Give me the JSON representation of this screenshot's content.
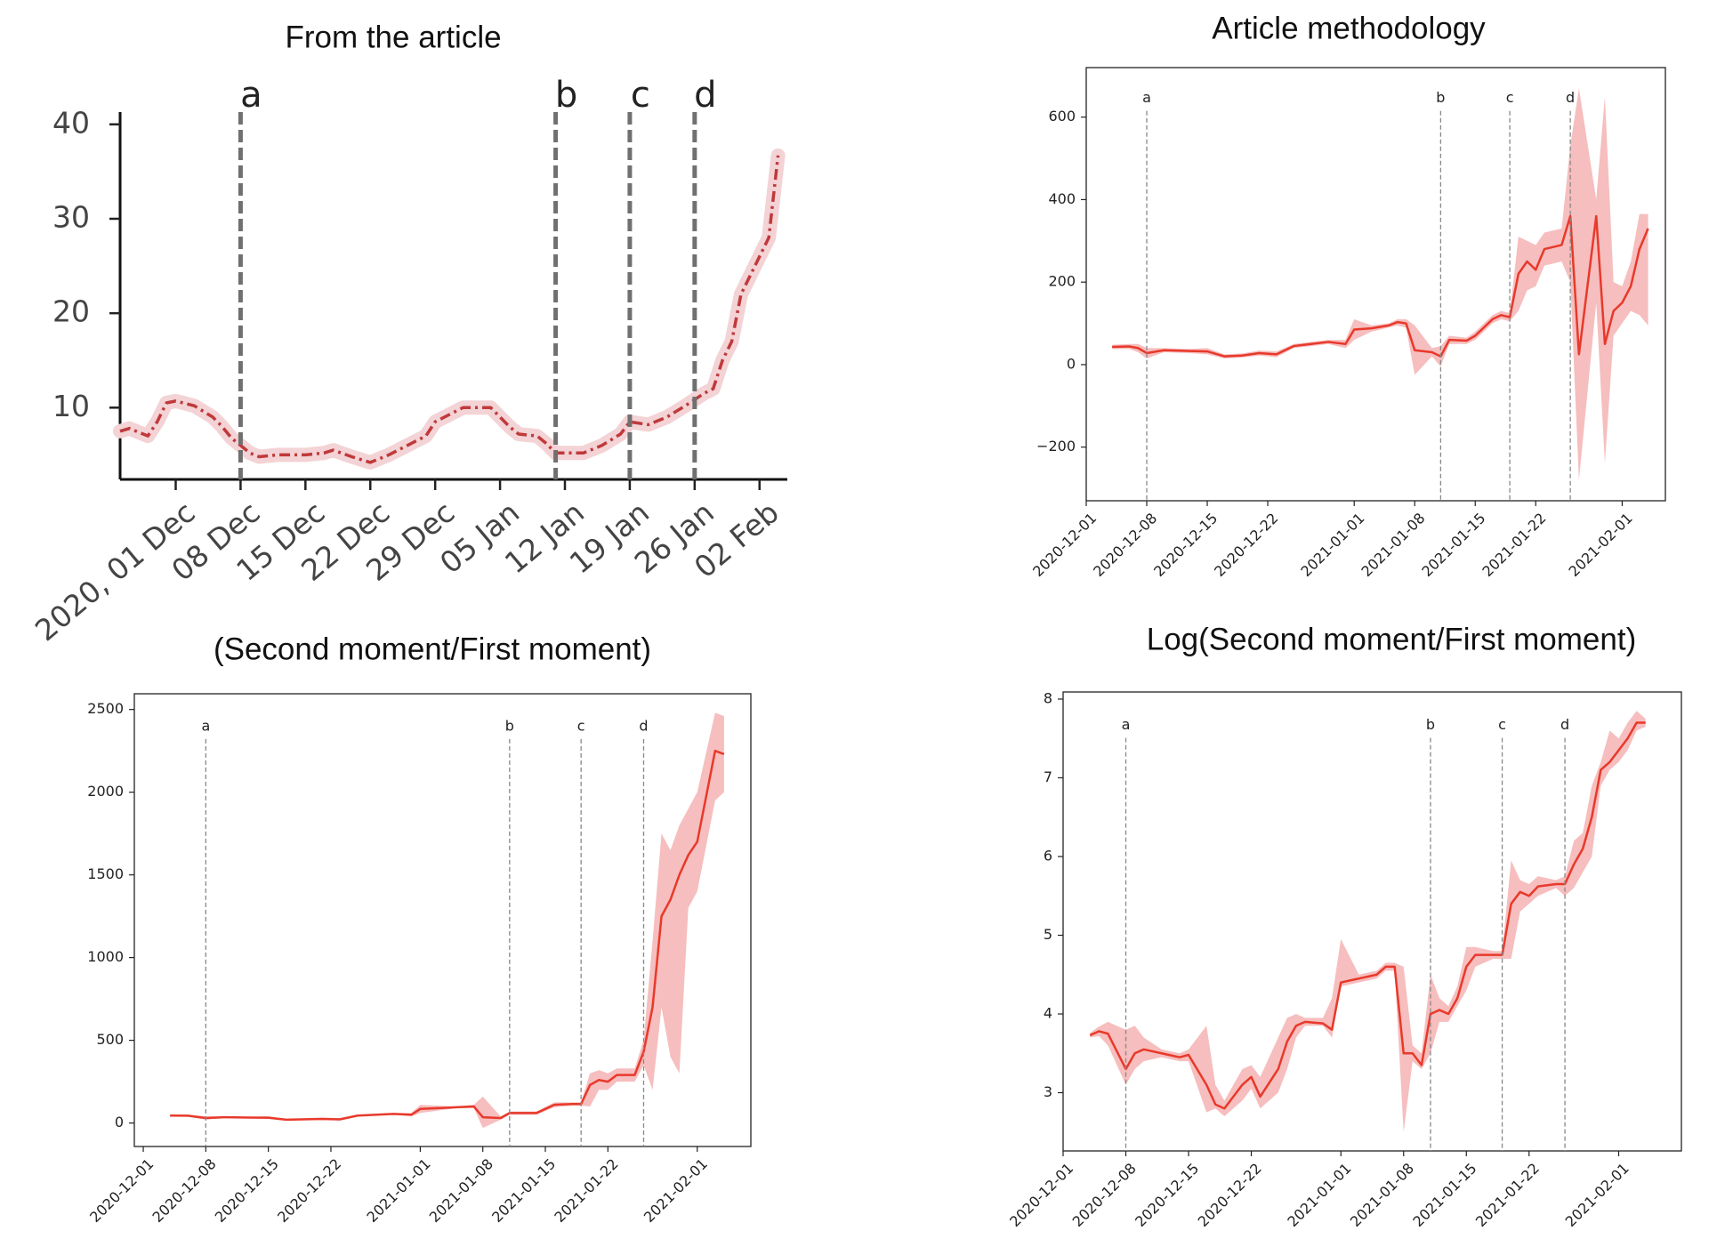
{
  "chart_data": [
    {
      "type": "line",
      "title": "From the article",
      "frame": false,
      "dash": "dashdot",
      "color": "#c0393b",
      "halo_color": "#f3d3d5",
      "x": [
        "2020-11-25",
        "2020-11-26",
        "2020-11-27",
        "2020-11-28",
        "2020-11-29",
        "2020-11-30",
        "2020-12-01",
        "2020-12-03",
        "2020-12-05",
        "2020-12-06",
        "2020-12-07",
        "2020-12-08",
        "2020-12-09",
        "2020-12-10",
        "2020-12-12",
        "2020-12-15",
        "2020-12-17",
        "2020-12-18",
        "2020-12-20",
        "2020-12-22",
        "2020-12-24",
        "2020-12-26",
        "2020-12-28",
        "2020-12-29",
        "2020-12-31",
        "2021-01-01",
        "2021-01-04",
        "2021-01-05",
        "2021-01-06",
        "2021-01-07",
        "2021-01-09",
        "2021-01-10",
        "2021-01-11",
        "2021-01-14",
        "2021-01-16",
        "2021-01-18",
        "2021-01-19",
        "2021-01-21",
        "2021-01-23",
        "2021-01-25",
        "2021-01-27",
        "2021-01-28",
        "2021-01-29",
        "2021-01-30",
        "2021-01-31",
        "2021-02-01",
        "2021-02-02",
        "2021-02-03",
        "2021-02-04"
      ],
      "values": [
        7.5,
        7.8,
        7.4,
        7,
        8.5,
        10.5,
        10.7,
        10.2,
        9,
        8,
        6.8,
        6,
        5.2,
        4.8,
        5,
        5,
        5.2,
        5.5,
        4.8,
        4.2,
        5,
        6,
        7,
        8.5,
        9.5,
        10,
        10,
        9,
        8,
        7.2,
        7,
        6.2,
        5.2,
        5.2,
        6,
        7.2,
        8.5,
        8.2,
        9,
        10.2,
        11.5,
        12,
        15,
        17,
        22,
        24,
        26,
        28,
        36.7
      ],
      "xlim": [
        "2020-11-25",
        "2021-02-05"
      ],
      "xticks": [
        {
          "value": "2020-12-01",
          "label": "2020, 01 Dec"
        },
        {
          "value": "2020-12-08",
          "label": "08 Dec"
        },
        {
          "value": "2020-12-15",
          "label": "15 Dec"
        },
        {
          "value": "2020-12-22",
          "label": "22 Dec"
        },
        {
          "value": "2020-12-29",
          "label": "29 Dec"
        },
        {
          "value": "2021-01-05",
          "label": "05 Jan"
        },
        {
          "value": "2021-01-12",
          "label": "12 Jan"
        },
        {
          "value": "2021-01-19",
          "label": "19 Jan"
        },
        {
          "value": "2021-01-26",
          "label": "26 Jan"
        },
        {
          "value": "2021-02-02",
          "label": "02 Feb"
        }
      ],
      "ylim": [
        2.4,
        41.3
      ],
      "yticks": [
        10,
        20,
        30,
        40
      ],
      "vlines": [
        {
          "x": "2020-12-08",
          "label": "a"
        },
        {
          "x": "2021-01-11",
          "label": "b"
        },
        {
          "x": "2021-01-19",
          "label": "c"
        },
        {
          "x": "2021-01-26",
          "label": "d"
        }
      ]
    },
    {
      "type": "band",
      "title": "Article methodology",
      "frame": true,
      "color": "#e8392b",
      "band_color": "#f2a3a3",
      "x": [
        "2020-12-04",
        "2020-12-06",
        "2020-12-07",
        "2020-12-08",
        "2020-12-10",
        "2020-12-13",
        "2020-12-15",
        "2020-12-17",
        "2020-12-19",
        "2020-12-21",
        "2020-12-23",
        "2020-12-25",
        "2020-12-27",
        "2020-12-29",
        "2020-12-31",
        "2021-01-01",
        "2021-01-03",
        "2021-01-05",
        "2021-01-06",
        "2021-01-07",
        "2021-01-08",
        "2021-01-10",
        "2021-01-11",
        "2021-01-12",
        "2021-01-14",
        "2021-01-15",
        "2021-01-17",
        "2021-01-18",
        "2021-01-19",
        "2021-01-20",
        "2021-01-21",
        "2021-01-22",
        "2021-01-23",
        "2021-01-25",
        "2021-01-26",
        "2021-01-27",
        "2021-01-29",
        "2021-01-30",
        "2021-01-31",
        "2021-02-01",
        "2021-02-02",
        "2021-02-03",
        "2021-02-04"
      ],
      "values": [
        43,
        44,
        40,
        28,
        35,
        33,
        32,
        20,
        22,
        28,
        25,
        45,
        50,
        55,
        50,
        85,
        88,
        95,
        103,
        100,
        35,
        30,
        20,
        60,
        58,
        70,
        110,
        120,
        115,
        220,
        250,
        230,
        280,
        290,
        360,
        25,
        360,
        50,
        130,
        150,
        190,
        280,
        330
      ],
      "lower": [
        38,
        38,
        30,
        15,
        30,
        28,
        25,
        15,
        17,
        22,
        18,
        40,
        45,
        50,
        40,
        60,
        80,
        90,
        95,
        90,
        -25,
        20,
        -5,
        50,
        50,
        60,
        100,
        110,
        105,
        130,
        180,
        190,
        240,
        250,
        200,
        -280,
        150,
        -240,
        70,
        100,
        130,
        120,
        95
      ],
      "upper": [
        48,
        50,
        50,
        40,
        40,
        38,
        40,
        25,
        27,
        34,
        32,
        50,
        55,
        60,
        60,
        110,
        95,
        100,
        110,
        110,
        95,
        40,
        45,
        70,
        65,
        80,
        120,
        130,
        125,
        310,
        300,
        290,
        320,
        330,
        530,
        670,
        400,
        650,
        200,
        190,
        250,
        365,
        365
      ],
      "xlim": [
        "2020-12-01",
        "2021-02-06"
      ],
      "xticks": [
        "2020-12-01",
        "2020-12-08",
        "2020-12-15",
        "2020-12-22",
        "2021-01-01",
        "2021-01-08",
        "2021-01-15",
        "2021-01-22",
        "2021-02-01"
      ],
      "ylim": [
        -330,
        720
      ],
      "yticks": [
        {
          "value": -200,
          "label": "−200"
        },
        0,
        200,
        400,
        600
      ],
      "vlines": [
        {
          "x": "2020-12-08",
          "label": "a"
        },
        {
          "x": "2021-01-11",
          "label": "b"
        },
        {
          "x": "2021-01-19",
          "label": "c"
        },
        {
          "x": "2021-01-26",
          "label": "d"
        }
      ]
    },
    {
      "type": "band",
      "title": "(Second moment/First moment)",
      "frame": true,
      "color": "#e8392b",
      "band_color": "#f2a3a3",
      "x": [
        "2020-12-04",
        "2020-12-06",
        "2020-12-08",
        "2020-12-10",
        "2020-12-13",
        "2020-12-15",
        "2020-12-17",
        "2020-12-21",
        "2020-12-23",
        "2020-12-25",
        "2020-12-29",
        "2020-12-31",
        "2021-01-01",
        "2021-01-05",
        "2021-01-07",
        "2021-01-08",
        "2021-01-10",
        "2021-01-11",
        "2021-01-14",
        "2021-01-16",
        "2021-01-18",
        "2021-01-19",
        "2021-01-20",
        "2021-01-21",
        "2021-01-22",
        "2021-01-23",
        "2021-01-25",
        "2021-01-26",
        "2021-01-27",
        "2021-01-28",
        "2021-01-29",
        "2021-01-30",
        "2021-01-31",
        "2021-02-01",
        "2021-02-03",
        "2021-02-04"
      ],
      "values": [
        45,
        44,
        30,
        35,
        33,
        32,
        20,
        25,
        22,
        45,
        55,
        50,
        85,
        95,
        100,
        35,
        30,
        60,
        60,
        110,
        115,
        115,
        230,
        260,
        250,
        290,
        290,
        430,
        700,
        1250,
        1350,
        1500,
        1620,
        1700,
        2250,
        2230
      ],
      "lower": [
        40,
        38,
        20,
        30,
        28,
        25,
        15,
        18,
        15,
        40,
        50,
        40,
        60,
        90,
        90,
        -30,
        20,
        50,
        50,
        95,
        105,
        105,
        100,
        200,
        200,
        250,
        250,
        350,
        200,
        700,
        400,
        300,
        1300,
        1400,
        1950,
        2000
      ],
      "upper": [
        50,
        50,
        40,
        40,
        38,
        40,
        25,
        32,
        30,
        50,
        60,
        60,
        110,
        100,
        110,
        160,
        40,
        70,
        70,
        125,
        125,
        125,
        300,
        320,
        300,
        330,
        330,
        500,
        1100,
        1750,
        1650,
        1800,
        1900,
        2000,
        2480,
        2460
      ],
      "xlim": [
        "2020-11-30",
        "2021-02-07"
      ],
      "xticks": [
        "2020-12-01",
        "2020-12-08",
        "2020-12-15",
        "2020-12-22",
        "2021-01-01",
        "2021-01-08",
        "2021-01-15",
        "2021-01-22",
        "2021-02-01"
      ],
      "ylim": [
        -142,
        2595
      ],
      "yticks": [
        0,
        500,
        1000,
        1500,
        2000,
        2500
      ],
      "vlines": [
        {
          "x": "2020-12-08",
          "label": "a"
        },
        {
          "x": "2021-01-11",
          "label": "b"
        },
        {
          "x": "2021-01-19",
          "label": "c"
        },
        {
          "x": "2021-01-26",
          "label": "d"
        }
      ]
    },
    {
      "type": "band",
      "title": "Log(Second moment/First moment)",
      "frame": true,
      "color": "#e8392b",
      "band_color": "#f2a3a3",
      "x": [
        "2020-12-04",
        "2020-12-05",
        "2020-12-06",
        "2020-12-08",
        "2020-12-09",
        "2020-12-10",
        "2020-12-12",
        "2020-12-14",
        "2020-12-15",
        "2020-12-17",
        "2020-12-18",
        "2020-12-19",
        "2020-12-21",
        "2020-12-22",
        "2020-12-23",
        "2020-12-25",
        "2020-12-26",
        "2020-12-27",
        "2020-12-28",
        "2020-12-30",
        "2020-12-31",
        "2021-01-01",
        "2021-01-03",
        "2021-01-05",
        "2021-01-06",
        "2021-01-07",
        "2021-01-08",
        "2021-01-09",
        "2021-01-10",
        "2021-01-11",
        "2021-01-12",
        "2021-01-13",
        "2021-01-14",
        "2021-01-15",
        "2021-01-16",
        "2021-01-18",
        "2021-01-19",
        "2021-01-20",
        "2021-01-21",
        "2021-01-22",
        "2021-01-23",
        "2021-01-25",
        "2021-01-26",
        "2021-01-27",
        "2021-01-28",
        "2021-01-29",
        "2021-01-30",
        "2021-01-31",
        "2021-02-01",
        "2021-02-02",
        "2021-02-03",
        "2021-02-04"
      ],
      "values": [
        3.73,
        3.78,
        3.75,
        3.3,
        3.5,
        3.55,
        3.5,
        3.45,
        3.48,
        3.1,
        2.85,
        2.8,
        3.1,
        3.2,
        2.95,
        3.3,
        3.65,
        3.85,
        3.9,
        3.88,
        3.8,
        4.4,
        4.45,
        4.5,
        4.6,
        4.6,
        3.5,
        3.5,
        3.35,
        4.0,
        4.05,
        4.0,
        4.2,
        4.6,
        4.75,
        4.75,
        4.75,
        5.4,
        5.55,
        5.5,
        5.62,
        5.65,
        5.65,
        5.9,
        6.1,
        6.5,
        7.1,
        7.2,
        7.35,
        7.5,
        7.7,
        7.7
      ],
      "lower": [
        3.7,
        3.72,
        3.6,
        3.1,
        3.3,
        3.4,
        3.45,
        3.4,
        3.4,
        2.75,
        2.8,
        2.7,
        2.9,
        3.05,
        2.8,
        3.0,
        3.3,
        3.7,
        3.85,
        3.85,
        3.7,
        4.35,
        4.4,
        4.45,
        4.55,
        4.55,
        2.5,
        3.4,
        3.3,
        3.5,
        3.9,
        3.9,
        4.1,
        4.3,
        4.6,
        4.7,
        4.7,
        4.7,
        5.3,
        5.4,
        5.5,
        5.6,
        5.5,
        5.6,
        5.8,
        6.0,
        6.9,
        7.1,
        7.2,
        7.35,
        7.6,
        7.65
      ],
      "upper": [
        3.76,
        3.84,
        3.9,
        3.8,
        3.85,
        3.7,
        3.55,
        3.5,
        3.55,
        3.85,
        3.1,
        2.9,
        3.3,
        3.35,
        3.2,
        3.7,
        3.95,
        4.0,
        3.95,
        3.95,
        4.2,
        4.95,
        4.5,
        4.55,
        4.65,
        4.65,
        4.6,
        3.6,
        3.5,
        4.5,
        4.2,
        4.1,
        4.35,
        4.85,
        4.85,
        4.8,
        4.8,
        5.95,
        5.7,
        5.65,
        5.75,
        5.7,
        5.75,
        6.2,
        6.3,
        6.9,
        7.2,
        7.6,
        7.5,
        7.7,
        7.85,
        7.75
      ],
      "xlim": [
        "2020-12-01",
        "2021-02-08"
      ],
      "xticks": [
        "2020-12-01",
        "2020-12-08",
        "2020-12-15",
        "2020-12-22",
        "2021-01-01",
        "2021-01-08",
        "2021-01-15",
        "2021-01-22",
        "2021-02-01"
      ],
      "ylim": [
        2.26,
        8.09
      ],
      "yticks": [
        3,
        4,
        5,
        6,
        7,
        8
      ],
      "vlines": [
        {
          "x": "2020-12-08",
          "label": "a"
        },
        {
          "x": "2021-01-11",
          "label": "b"
        },
        {
          "x": "2021-01-19",
          "label": "c"
        },
        {
          "x": "2021-01-26",
          "label": "d"
        }
      ]
    }
  ]
}
